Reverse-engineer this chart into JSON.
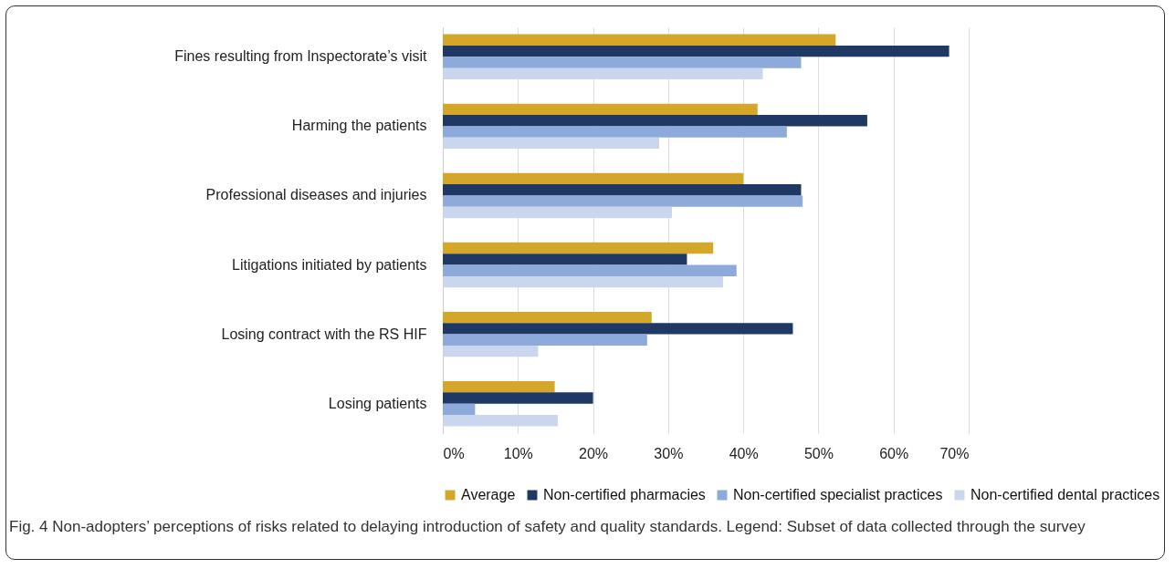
{
  "chart_data": {
    "type": "bar",
    "orientation": "horizontal",
    "categories": [
      "Fines resulting from Inspectorate’s visit",
      "Harming the patients",
      "Professional diseases and injuries",
      "Litigations initiated by patients",
      "Losing contract with the RS HIF",
      "Losing patients"
    ],
    "series": [
      {
        "name": "Average",
        "color": "#d4a62a",
        "values": [
          52.3,
          41.9,
          40.0,
          36.0,
          27.8,
          14.9
        ]
      },
      {
        "name": "Non-certified pharmacies",
        "color": "#1f3864",
        "values": [
          67.4,
          56.5,
          47.7,
          32.5,
          46.6,
          20.0
        ]
      },
      {
        "name": "Non-certified specialist practices",
        "color": "#8eaadb",
        "values": [
          47.7,
          45.8,
          47.9,
          39.1,
          27.2,
          4.3
        ]
      },
      {
        "name": "Non-certified dental practices",
        "color": "#c9d6ee",
        "values": [
          42.6,
          28.8,
          30.5,
          37.3,
          12.7,
          15.3
        ]
      }
    ],
    "xlim": [
      0,
      70
    ],
    "xticks": [
      {
        "value": 0,
        "label": "0%"
      },
      {
        "value": 10,
        "label": "10%"
      },
      {
        "value": 20,
        "label": "20%"
      },
      {
        "value": 30,
        "label": "30%"
      },
      {
        "value": 40,
        "label": "40%"
      },
      {
        "value": 50,
        "label": "50%"
      },
      {
        "value": 60,
        "label": "60%"
      },
      {
        "value": 70,
        "label": "70%"
      }
    ],
    "grid": "x",
    "legend": "bottom",
    "annotations": [
      "Fig. 4 Non-adopters’ perceptions of risks related to delaying introduction of safety and quality standards. Legend: Subset of data collected through the survey"
    ]
  }
}
